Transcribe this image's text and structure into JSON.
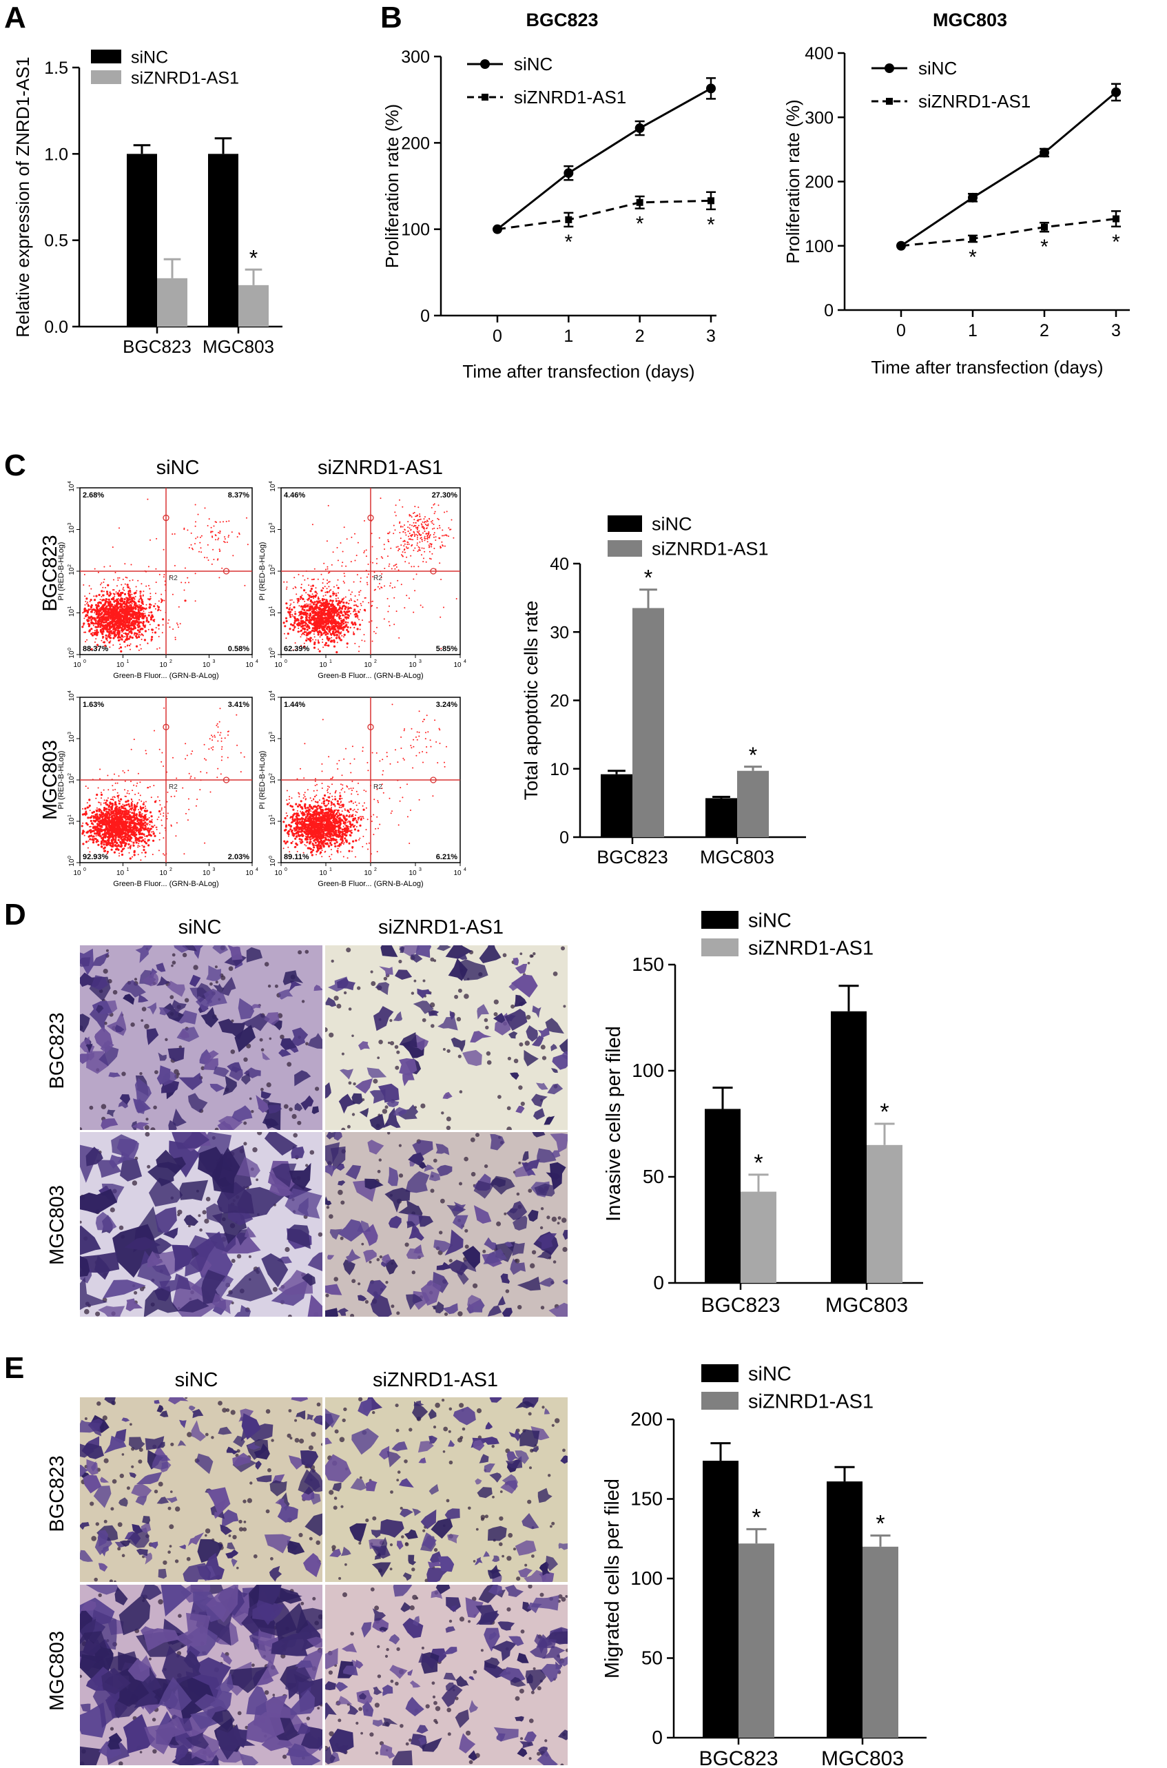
{
  "panels": {
    "A": {
      "letter": "A"
    },
    "B": {
      "letter": "B"
    },
    "C": {
      "letter": "C"
    },
    "D": {
      "letter": "D"
    },
    "E": {
      "letter": "E"
    }
  },
  "colors": {
    "siNC": "#000000",
    "siZNRD1_light": "#a8a8a8",
    "siZNRD1_dark": "#808080",
    "dots": "#ff1a1a",
    "gate": "#d83030"
  },
  "panelA": {
    "chart_data": {
      "type": "bar",
      "categories": [
        "BGC823",
        "MGC803"
      ],
      "series": [
        {
          "name": "siNC",
          "values": [
            1.0,
            1.0
          ],
          "errors": [
            0.05,
            0.09
          ]
        },
        {
          "name": "siZNRD1-AS1",
          "values": [
            0.28,
            0.24
          ],
          "errors": [
            0.11,
            0.09
          ]
        }
      ],
      "ylabel": "Relative expression of ZNRD1-AS1",
      "ylim": [
        0,
        1.5
      ],
      "yticks": [
        "0.0",
        "0.5",
        "1.0",
        "1.5"
      ],
      "significance": [
        false,
        true
      ],
      "annotation": "*",
      "legend": "top-left"
    }
  },
  "panelB": {
    "chart_data": [
      {
        "type": "line",
        "title": "BGC823",
        "x": [
          0,
          1,
          2,
          3
        ],
        "xticks": [
          "0",
          "1",
          "2",
          "3"
        ],
        "xlabel": "Time after transfection (days)",
        "ylabel": "Proliferation rate (%)",
        "ylim": [
          0,
          300
        ],
        "yticks": [
          "0",
          "100",
          "200",
          "300"
        ],
        "series": [
          {
            "name": "siNC",
            "values": [
              100,
              165,
              217,
              263
            ],
            "errors": [
              0,
              8,
              8,
              12
            ]
          },
          {
            "name": "siZNRD1-AS1",
            "values": [
              100,
              111,
              131,
              133
            ],
            "errors": [
              0,
              8,
              7,
              10
            ]
          }
        ],
        "annotation": "*",
        "legend": "top-left"
      },
      {
        "type": "line",
        "title": "MGC803",
        "x": [
          0,
          1,
          2,
          3
        ],
        "xticks": [
          "0",
          "1",
          "2",
          "3"
        ],
        "xlabel": "Time after transfection (days)",
        "ylabel": "Proliferation rate (%)",
        "ylim": [
          0,
          400
        ],
        "yticks": [
          "0",
          "100",
          "200",
          "300",
          "400"
        ],
        "series": [
          {
            "name": "siNC",
            "values": [
              100,
              175,
              245,
              339
            ],
            "errors": [
              0,
              6,
              6,
              13
            ]
          },
          {
            "name": "siZNRD1-AS1",
            "values": [
              100,
              111,
              129,
              142
            ],
            "errors": [
              0,
              5,
              7,
              12
            ]
          }
        ],
        "annotation": "*",
        "legend": "top-left"
      }
    ]
  },
  "panelC": {
    "col_labels": [
      "siNC",
      "siZNRD1-AS1"
    ],
    "row_labels": [
      "BGC823",
      "MGC803"
    ],
    "plot_xlabel": "Green-B Fluor... (GRN-B-ALog)",
    "plot_ylabel": "PI (RED-B-HLog)",
    "gate_label": "R2",
    "tick_labels": {
      "x": [
        "10",
        "10",
        "10",
        "10",
        "10"
      ],
      "x_exp": [
        "0",
        "1",
        "2",
        "3",
        "4"
      ],
      "y": [
        "10",
        "10",
        "10",
        "10",
        "10"
      ],
      "y_exp": [
        "0",
        "1",
        "2",
        "3",
        "4"
      ]
    },
    "plots": [
      {
        "UL": "2.68%",
        "UR": "8.37%",
        "LL": "88.37%",
        "LR": "0.58%"
      },
      {
        "UL": "4.46%",
        "UR": "27.30%",
        "LL": "62.39%",
        "LR": "5.85%"
      },
      {
        "UL": "1.63%",
        "UR": "3.41%",
        "LL": "92.93%",
        "LR": "2.03%"
      },
      {
        "UL": "1.44%",
        "UR": "3.24%",
        "LL": "89.11%",
        "LR": "6.21%"
      }
    ],
    "chart_data": {
      "type": "bar",
      "categories": [
        "BGC823",
        "MGC803"
      ],
      "series": [
        {
          "name": "siNC",
          "values": [
            9.2,
            5.7
          ],
          "errors": [
            0.5,
            0.2
          ]
        },
        {
          "name": "siZNRD1-AS1",
          "values": [
            33.5,
            9.7
          ],
          "errors": [
            2.7,
            0.6
          ]
        }
      ],
      "ylabel": "Total apoptotic cells rate",
      "ylim": [
        0,
        40
      ],
      "yticks": [
        "0",
        "10",
        "20",
        "30",
        "40"
      ],
      "annotation": "*",
      "legend": "top-left"
    }
  },
  "panelD": {
    "col_labels": [
      "siNC",
      "siZNRD1-AS1"
    ],
    "row_labels": [
      "BGC823",
      "MGC803"
    ],
    "chart_data": {
      "type": "bar",
      "categories": [
        "BGC823",
        "MGC803"
      ],
      "series": [
        {
          "name": "siNC",
          "values": [
            82,
            128
          ],
          "errors": [
            10,
            12
          ]
        },
        {
          "name": "siZNRD1-AS1",
          "values": [
            43,
            65
          ],
          "errors": [
            8,
            10
          ]
        }
      ],
      "ylabel": "Invasive cells per filed",
      "ylim": [
        0,
        150
      ],
      "yticks": [
        "0",
        "50",
        "100",
        "150"
      ],
      "annotation": "*",
      "legend": "top-left"
    }
  },
  "panelE": {
    "col_labels": [
      "siNC",
      "siZNRD1-AS1"
    ],
    "row_labels": [
      "BGC823",
      "MGC803"
    ],
    "chart_data": {
      "type": "bar",
      "categories": [
        "BGC823",
        "MGC803"
      ],
      "series": [
        {
          "name": "siNC",
          "values": [
            174,
            161
          ],
          "errors": [
            11,
            9
          ]
        },
        {
          "name": "siZNRD1-AS1",
          "values": [
            122,
            120
          ],
          "errors": [
            9,
            7
          ]
        }
      ],
      "ylabel": "Migrated cells per filed",
      "ylim": [
        0,
        200
      ],
      "yticks": [
        "0",
        "50",
        "100",
        "150",
        "200"
      ],
      "annotation": "*",
      "legend": "top-left"
    }
  }
}
